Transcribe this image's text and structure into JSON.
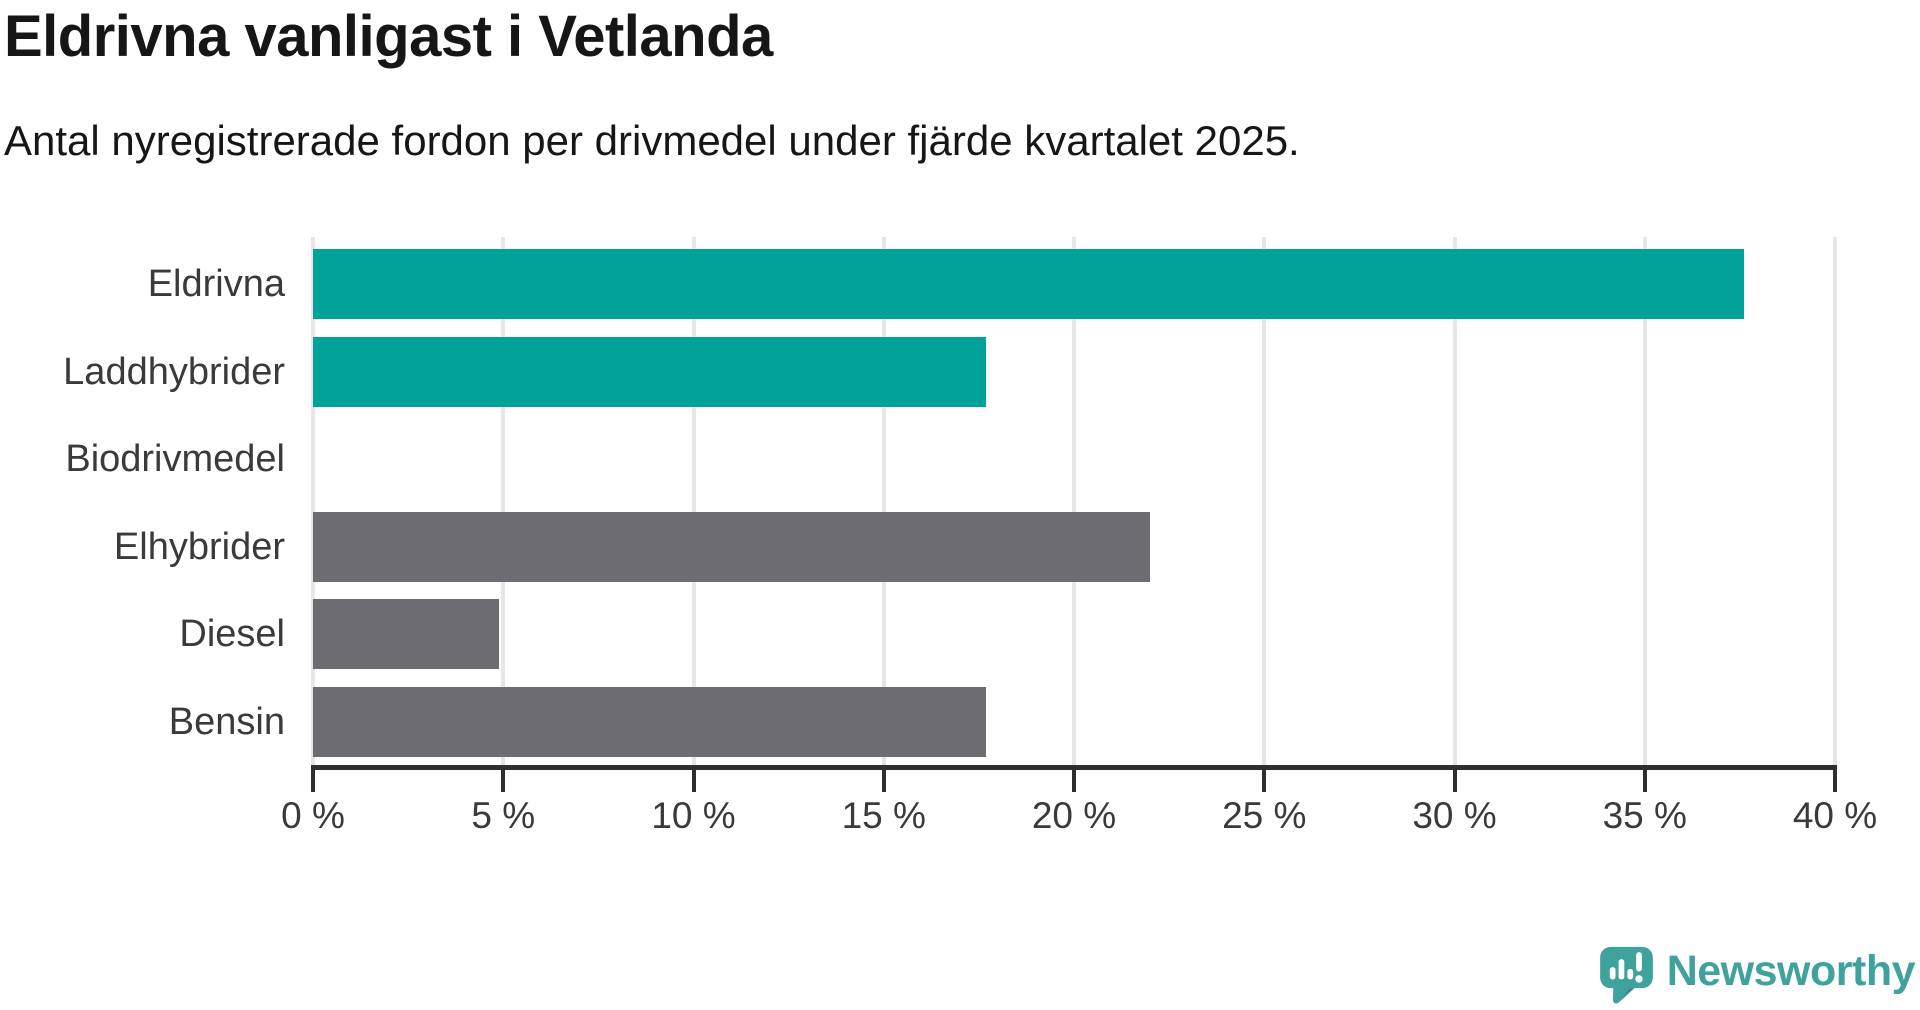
{
  "header": {
    "title": "Eldrivna vanligast i Vetlanda",
    "subtitle": "Antal nyregistrerade fordon per drivmedel under fjärde kvartalet 2025."
  },
  "chart_data": {
    "type": "bar",
    "orientation": "horizontal",
    "title": "Eldrivna vanligast i Vetlanda",
    "subtitle": "Antal nyregistrerade fordon per drivmedel under fjärde kvartalet 2025.",
    "categories": [
      "Eldrivna",
      "Laddhybrider",
      "Biodrivmedel",
      "Elhybrider",
      "Diesel",
      "Bensin"
    ],
    "values": [
      37.6,
      17.7,
      0,
      22.0,
      4.9,
      17.7
    ],
    "unit": "%",
    "xlabel": "",
    "ylabel": "",
    "xlim": [
      0,
      40
    ],
    "xticks": [
      0,
      5,
      10,
      15,
      20,
      25,
      30,
      35,
      40
    ],
    "xtick_labels": [
      "0 %",
      "5 %",
      "10 %",
      "15 %",
      "20 %",
      "25 %",
      "30 %",
      "35 %",
      "40 %"
    ],
    "grid": true,
    "legend": false,
    "bar_colors": [
      "#00a29a",
      "#00a29a",
      "#00a29a",
      "#6d6d71",
      "#6d6d71",
      "#6d6d71"
    ]
  },
  "colors": {
    "highlight": "#00a29a",
    "neutral": "#6d6d71",
    "grid": "#e6e6e6",
    "axis": "#2f2f2f",
    "text": "#161616",
    "brand": "#3fa29c"
  },
  "branding": {
    "logo_text": "Newsworthy",
    "logo_icon": "newsworthy-speech-bubble-bar-chart-icon"
  }
}
